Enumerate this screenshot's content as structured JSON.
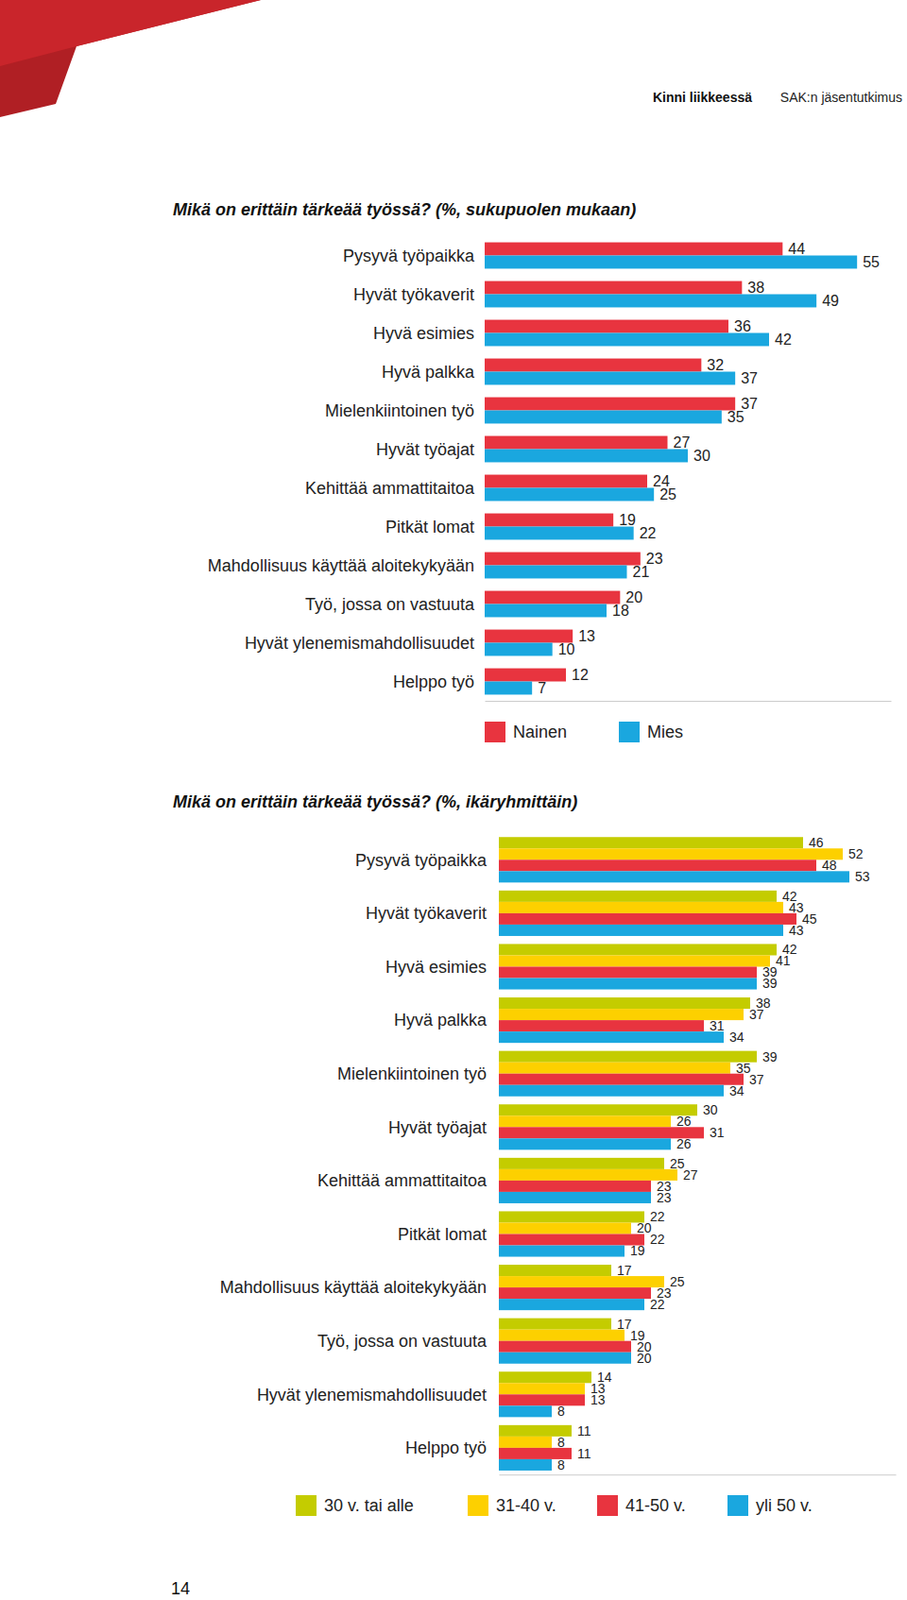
{
  "header": {
    "left": "Kinni liikkeessä",
    "right": "SAK:n jäsentutkimus"
  },
  "page_number": "14",
  "chart_data": [
    {
      "type": "bar",
      "orientation": "horizontal",
      "title": "Mikä on erittäin tärkeää työssä? (%, sukupuolen mukaan)",
      "categories": [
        "Pysyvä työpaikka",
        "Hyvät työkaverit",
        "Hyvä esimies",
        "Hyvä palkka",
        "Mielenkiintoinen työ",
        "Hyvät työajat",
        "Kehittää ammattitaitoa",
        "Pitkät lomat",
        "Mahdollisuus käyttää aloitekykyään",
        "Työ, jossa on vastuuta",
        "Hyvät ylenemismahdollisuudet",
        "Helppo työ"
      ],
      "series": [
        {
          "name": "Nainen",
          "color": "#e8343f",
          "values": [
            44,
            38,
            36,
            32,
            37,
            27,
            24,
            19,
            23,
            20,
            13,
            12
          ]
        },
        {
          "name": "Mies",
          "color": "#1aa7df",
          "values": [
            55,
            49,
            42,
            37,
            35,
            30,
            25,
            22,
            21,
            18,
            10,
            7
          ]
        }
      ],
      "xlim": [
        0,
        60
      ],
      "tick_labels": false,
      "data_labels": true,
      "legend": "bottom"
    },
    {
      "type": "bar",
      "orientation": "horizontal",
      "title": "Mikä on erittäin tärkeää työssä? (%, ikäryhmittäin)",
      "categories": [
        "Pysyvä työpaikka",
        "Hyvät työkaverit",
        "Hyvä esimies",
        "Hyvä palkka",
        "Mielenkiintoinen työ",
        "Hyvät työajat",
        "Kehittää ammattitaitoa",
        "Pitkät lomat",
        "Mahdollisuus käyttää aloitekykyään",
        "Työ, jossa on vastuuta",
        "Hyvät ylenemismahdollisuudet",
        "Helppo työ"
      ],
      "series": [
        {
          "name": "30 v. tai alle",
          "color": "#c4cc00",
          "values": [
            46,
            42,
            42,
            38,
            39,
            30,
            25,
            22,
            17,
            17,
            14,
            11
          ]
        },
        {
          "name": "31-40 v.",
          "color": "#fdd000",
          "values": [
            52,
            43,
            41,
            37,
            35,
            26,
            27,
            20,
            25,
            19,
            13,
            8
          ]
        },
        {
          "name": "41-50 v.",
          "color": "#e8343f",
          "values": [
            48,
            45,
            39,
            31,
            37,
            31,
            23,
            22,
            23,
            20,
            13,
            11
          ]
        },
        {
          "name": "yli 50 v.",
          "color": "#1aa7df",
          "values": [
            53,
            43,
            39,
            34,
            34,
            26,
            23,
            19,
            22,
            20,
            8,
            8
          ]
        }
      ],
      "xlim": [
        0,
        60
      ],
      "tick_labels": false,
      "data_labels": true,
      "legend": "bottom"
    }
  ]
}
